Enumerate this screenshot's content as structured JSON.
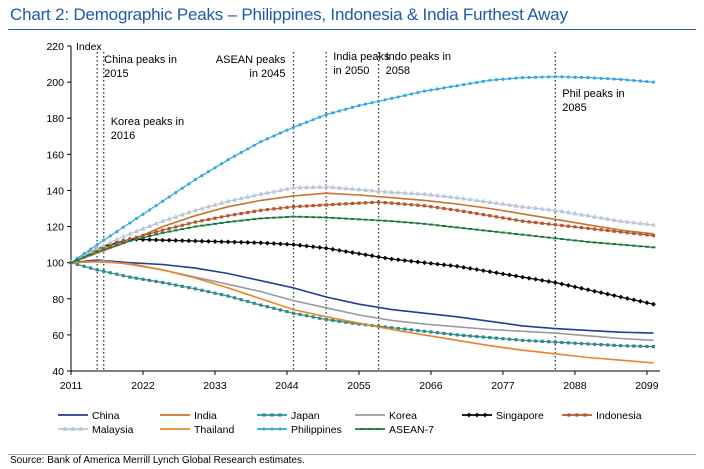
{
  "title": "Chart 2: Demographic Peaks – Philippines, Indonesia & India Furthest Away",
  "source": "Source: Bank of America Merrill Lynch Global Research estimates.",
  "chart_data": {
    "type": "line",
    "ylabel": "Index",
    "xlabel": "",
    "xlim": [
      2011,
      2101
    ],
    "ylim": [
      40,
      220
    ],
    "x_ticks": [
      2011,
      2022,
      2033,
      2044,
      2055,
      2066,
      2077,
      2088,
      2099
    ],
    "y_ticks": [
      40,
      60,
      80,
      100,
      120,
      140,
      160,
      180,
      200,
      220
    ],
    "grid": false,
    "legend_position": "bottom",
    "annotations": [
      {
        "x": 2015,
        "text": [
          "China peaks in",
          "2015"
        ]
      },
      {
        "x": 2016,
        "text": [
          "Korea peaks in",
          "2016"
        ]
      },
      {
        "x": 2045,
        "text": [
          "ASEAN peaks",
          "in 2045"
        ]
      },
      {
        "x": 2050,
        "text": [
          "India peaks",
          "in 2050"
        ]
      },
      {
        "x": 2058,
        "text": [
          "Indo peaks in",
          "2058"
        ]
      },
      {
        "x": 2085,
        "text": [
          "Phil peaks in",
          "2085"
        ]
      }
    ],
    "series": [
      {
        "name": "China",
        "color": "#1f3f8f",
        "marker": "none",
        "points": [
          [
            2011,
            100
          ],
          [
            2015,
            101.5
          ],
          [
            2020,
            100
          ],
          [
            2025,
            99
          ],
          [
            2030,
            97
          ],
          [
            2035,
            94
          ],
          [
            2040,
            90
          ],
          [
            2045,
            86
          ],
          [
            2050,
            81
          ],
          [
            2055,
            77
          ],
          [
            2060,
            74
          ],
          [
            2065,
            72
          ],
          [
            2070,
            70
          ],
          [
            2075,
            67.5
          ],
          [
            2080,
            65
          ],
          [
            2085,
            63.5
          ],
          [
            2090,
            62.5
          ],
          [
            2095,
            61.5
          ],
          [
            2100,
            61
          ]
        ]
      },
      {
        "name": "India",
        "color": "#c8742e",
        "marker": "none",
        "points": [
          [
            2011,
            100
          ],
          [
            2020,
            112
          ],
          [
            2025,
            120
          ],
          [
            2030,
            126
          ],
          [
            2035,
            131
          ],
          [
            2040,
            134.5
          ],
          [
            2045,
            137
          ],
          [
            2050,
            138.5
          ],
          [
            2055,
            137.5
          ],
          [
            2060,
            136
          ],
          [
            2065,
            134.5
          ],
          [
            2070,
            132.5
          ],
          [
            2075,
            130
          ],
          [
            2080,
            127
          ],
          [
            2085,
            124
          ],
          [
            2090,
            121
          ],
          [
            2095,
            118
          ],
          [
            2100,
            116
          ]
        ]
      },
      {
        "name": "Japan",
        "color": "#2f8b8b",
        "marker": "square",
        "points": [
          [
            2011,
            100
          ],
          [
            2015,
            96
          ],
          [
            2020,
            92
          ],
          [
            2025,
            89
          ],
          [
            2030,
            85.5
          ],
          [
            2035,
            81.5
          ],
          [
            2040,
            76.5
          ],
          [
            2045,
            72
          ],
          [
            2050,
            68.5
          ],
          [
            2055,
            66
          ],
          [
            2060,
            64
          ],
          [
            2065,
            62
          ],
          [
            2070,
            60
          ],
          [
            2075,
            58.5
          ],
          [
            2080,
            57
          ],
          [
            2085,
            56
          ],
          [
            2090,
            55
          ],
          [
            2095,
            54
          ],
          [
            2100,
            53.5
          ]
        ]
      },
      {
        "name": "Korea",
        "color": "#9a9a9a",
        "marker": "none",
        "points": [
          [
            2011,
            100
          ],
          [
            2016,
            101
          ],
          [
            2020,
            99
          ],
          [
            2025,
            96
          ],
          [
            2030,
            92
          ],
          [
            2035,
            88
          ],
          [
            2040,
            84
          ],
          [
            2045,
            79
          ],
          [
            2050,
            75
          ],
          [
            2055,
            71
          ],
          [
            2060,
            68
          ],
          [
            2065,
            66
          ],
          [
            2070,
            64.5
          ],
          [
            2075,
            63
          ],
          [
            2080,
            62
          ],
          [
            2085,
            61
          ],
          [
            2090,
            59.5
          ],
          [
            2095,
            58
          ],
          [
            2100,
            57
          ]
        ]
      },
      {
        "name": "Singapore",
        "color": "#000000",
        "marker": "diamond",
        "points": [
          [
            2011,
            100
          ],
          [
            2015,
            108
          ],
          [
            2020,
            113
          ],
          [
            2025,
            112.5
          ],
          [
            2030,
            112
          ],
          [
            2035,
            111.5
          ],
          [
            2040,
            111
          ],
          [
            2045,
            110
          ],
          [
            2050,
            108
          ],
          [
            2055,
            105
          ],
          [
            2060,
            102
          ],
          [
            2065,
            100
          ],
          [
            2070,
            98
          ],
          [
            2075,
            95
          ],
          [
            2080,
            92
          ],
          [
            2085,
            89
          ],
          [
            2090,
            85
          ],
          [
            2095,
            81
          ],
          [
            2100,
            77
          ]
        ]
      },
      {
        "name": "Indonesia",
        "color": "#b5562e",
        "marker": "square",
        "points": [
          [
            2011,
            100
          ],
          [
            2015,
            107
          ],
          [
            2020,
            113
          ],
          [
            2025,
            118
          ],
          [
            2030,
            122.5
          ],
          [
            2035,
            126
          ],
          [
            2040,
            129
          ],
          [
            2045,
            131
          ],
          [
            2050,
            132
          ],
          [
            2055,
            133
          ],
          [
            2058,
            133.5
          ],
          [
            2060,
            133
          ],
          [
            2065,
            131.5
          ],
          [
            2070,
            129
          ],
          [
            2075,
            126
          ],
          [
            2080,
            123
          ],
          [
            2085,
            121
          ],
          [
            2090,
            119
          ],
          [
            2095,
            117
          ],
          [
            2100,
            115
          ]
        ]
      },
      {
        "name": "Malaysia",
        "color": "#b9c7d6",
        "marker": "triangle",
        "points": [
          [
            2011,
            100
          ],
          [
            2015,
            108
          ],
          [
            2020,
            116
          ],
          [
            2025,
            123
          ],
          [
            2030,
            129
          ],
          [
            2035,
            134
          ],
          [
            2040,
            138
          ],
          [
            2045,
            141.5
          ],
          [
            2050,
            142
          ],
          [
            2055,
            140.5
          ],
          [
            2060,
            139
          ],
          [
            2065,
            138
          ],
          [
            2070,
            136
          ],
          [
            2075,
            133.5
          ],
          [
            2080,
            131
          ],
          [
            2085,
            129
          ],
          [
            2090,
            126
          ],
          [
            2095,
            123
          ],
          [
            2100,
            121
          ]
        ]
      },
      {
        "name": "Thailand",
        "color": "#e8842a",
        "marker": "none",
        "points": [
          [
            2011,
            100
          ],
          [
            2015,
            100.5
          ],
          [
            2020,
            99.5
          ],
          [
            2025,
            96
          ],
          [
            2030,
            91.5
          ],
          [
            2035,
            86
          ],
          [
            2040,
            80
          ],
          [
            2045,
            74
          ],
          [
            2050,
            70
          ],
          [
            2055,
            66.5
          ],
          [
            2060,
            63
          ],
          [
            2065,
            60
          ],
          [
            2070,
            57
          ],
          [
            2075,
            54
          ],
          [
            2080,
            51.5
          ],
          [
            2085,
            49.5
          ],
          [
            2090,
            47.5
          ],
          [
            2095,
            46
          ],
          [
            2100,
            44.5
          ]
        ]
      },
      {
        "name": "Philippines",
        "color": "#35a8e0",
        "marker": "circle",
        "points": [
          [
            2011,
            100
          ],
          [
            2015,
            110
          ],
          [
            2020,
            122
          ],
          [
            2025,
            134
          ],
          [
            2030,
            146
          ],
          [
            2035,
            157
          ],
          [
            2040,
            167
          ],
          [
            2045,
            175
          ],
          [
            2050,
            182
          ],
          [
            2055,
            187
          ],
          [
            2060,
            191
          ],
          [
            2065,
            195
          ],
          [
            2070,
            198
          ],
          [
            2075,
            201
          ],
          [
            2080,
            202.5
          ],
          [
            2085,
            203
          ],
          [
            2090,
            202.5
          ],
          [
            2095,
            201.5
          ],
          [
            2100,
            200
          ]
        ]
      },
      {
        "name": "ASEAN-7",
        "color": "#1d7a3e",
        "marker": "dash",
        "points": [
          [
            2011,
            100
          ],
          [
            2015,
            106
          ],
          [
            2020,
            112
          ],
          [
            2025,
            116.5
          ],
          [
            2030,
            120
          ],
          [
            2035,
            122.5
          ],
          [
            2040,
            124.5
          ],
          [
            2045,
            125.5
          ],
          [
            2050,
            125
          ],
          [
            2055,
            124
          ],
          [
            2060,
            123
          ],
          [
            2065,
            121.5
          ],
          [
            2070,
            119.5
          ],
          [
            2075,
            117.5
          ],
          [
            2080,
            115.5
          ],
          [
            2085,
            113.5
          ],
          [
            2090,
            111.5
          ],
          [
            2095,
            110
          ],
          [
            2100,
            108.5
          ]
        ]
      }
    ]
  }
}
